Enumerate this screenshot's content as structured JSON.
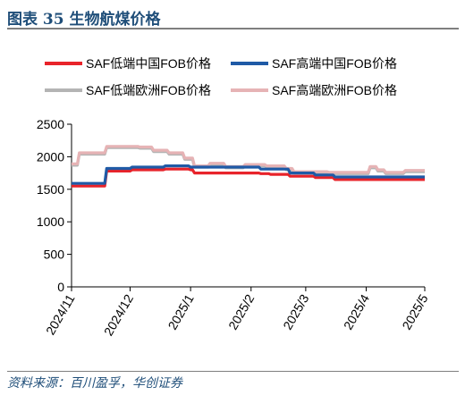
{
  "header": {
    "title": "图表 35   生物航煤价格"
  },
  "footer": {
    "source": "资料来源：百川盈孚，华创证券"
  },
  "chart_data": {
    "type": "line",
    "title": "",
    "xlabel": "",
    "ylabel": "",
    "ylim": [
      0,
      2500
    ],
    "yticks": [
      0,
      500,
      1000,
      1500,
      2000,
      2500
    ],
    "xticks": [
      "2024/11",
      "2024/12",
      "2025/1",
      "2025/2",
      "2025/3",
      "2025/4",
      "2025/5"
    ],
    "x_range": [
      "2024-11-01",
      "2025-05-01"
    ],
    "grid": false,
    "legend_position": "top",
    "series": [
      {
        "name": "SAF低端中国FOB价格",
        "color": "#e8232a",
        "x": [
          "2024-11-01",
          "2024-11-18",
          "2024-11-19",
          "2024-12-01",
          "2024-12-02",
          "2024-12-18",
          "2024-12-19",
          "2024-12-31",
          "2025-01-01",
          "2025-01-02",
          "2025-01-03",
          "2025-02-05",
          "2025-02-06",
          "2025-02-10",
          "2025-02-11",
          "2025-02-20",
          "2025-02-21",
          "2025-03-05",
          "2025-03-06",
          "2025-03-15",
          "2025-03-16",
          "2025-05-01"
        ],
        "values": [
          1550,
          1550,
          1780,
          1780,
          1800,
          1800,
          1810,
          1810,
          1800,
          1800,
          1750,
          1750,
          1740,
          1740,
          1730,
          1730,
          1700,
          1700,
          1680,
          1680,
          1650,
          1650
        ]
      },
      {
        "name": "SAF高端中国FOB价格",
        "color": "#1f5aa6",
        "x": [
          "2024-11-01",
          "2024-11-18",
          "2024-11-19",
          "2024-12-01",
          "2024-12-02",
          "2024-12-18",
          "2024-12-19",
          "2024-12-31",
          "2025-01-01",
          "2025-02-05",
          "2025-02-06",
          "2025-02-20",
          "2025-02-21",
          "2025-03-05",
          "2025-03-06",
          "2025-03-15",
          "2025-03-16",
          "2025-05-01"
        ],
        "values": [
          1590,
          1590,
          1820,
          1820,
          1840,
          1840,
          1860,
          1860,
          1840,
          1840,
          1810,
          1810,
          1750,
          1750,
          1720,
          1720,
          1690,
          1690
        ]
      },
      {
        "name": "SAF低端欧洲FOB价格",
        "color": "#b4b4b4",
        "x": [
          "2024-11-01",
          "2024-11-04",
          "2024-11-05",
          "2024-11-18",
          "2024-11-19",
          "2024-12-05",
          "2024-12-06",
          "2024-12-12",
          "2024-12-13",
          "2024-12-20",
          "2024-12-21",
          "2024-12-28",
          "2024-12-29",
          "2025-01-02",
          "2025-01-03",
          "2025-01-10",
          "2025-01-11",
          "2025-01-18",
          "2025-01-19",
          "2025-01-28",
          "2025-01-29",
          "2025-02-08",
          "2025-02-09",
          "2025-02-18",
          "2025-02-19",
          "2025-02-22",
          "2025-02-23",
          "2025-03-12",
          "2025-03-13",
          "2025-04-02",
          "2025-04-03",
          "2025-04-06",
          "2025-04-07",
          "2025-04-10",
          "2025-04-11",
          "2025-04-20",
          "2025-04-21",
          "2025-05-01"
        ],
        "values": [
          1870,
          1870,
          2040,
          2040,
          2140,
          2140,
          2130,
          2130,
          2080,
          2080,
          2040,
          2040,
          1960,
          1960,
          1840,
          1840,
          1880,
          1880,
          1830,
          1830,
          1860,
          1860,
          1840,
          1840,
          1800,
          1800,
          1750,
          1750,
          1740,
          1740,
          1830,
          1830,
          1780,
          1780,
          1740,
          1740,
          1770,
          1770
        ]
      },
      {
        "name": "SAF高端欧洲FOB价格",
        "color": "#e6b3b5",
        "x": [
          "2024-11-01",
          "2024-11-04",
          "2024-11-05",
          "2024-11-18",
          "2024-11-19",
          "2024-12-05",
          "2024-12-06",
          "2024-12-12",
          "2024-12-13",
          "2024-12-20",
          "2024-12-21",
          "2024-12-28",
          "2024-12-29",
          "2025-01-02",
          "2025-01-03",
          "2025-01-10",
          "2025-01-11",
          "2025-01-18",
          "2025-01-19",
          "2025-01-28",
          "2025-01-29",
          "2025-02-08",
          "2025-02-09",
          "2025-02-18",
          "2025-02-19",
          "2025-02-22",
          "2025-02-23",
          "2025-03-12",
          "2025-03-13",
          "2025-04-02",
          "2025-04-03",
          "2025-04-06",
          "2025-04-07",
          "2025-04-10",
          "2025-04-11",
          "2025-04-20",
          "2025-04-21",
          "2025-05-01"
        ],
        "values": [
          1890,
          1890,
          2060,
          2060,
          2160,
          2160,
          2150,
          2150,
          2100,
          2100,
          2060,
          2060,
          1980,
          1980,
          1860,
          1860,
          1900,
          1900,
          1850,
          1850,
          1880,
          1880,
          1860,
          1860,
          1820,
          1820,
          1770,
          1770,
          1760,
          1760,
          1850,
          1850,
          1800,
          1800,
          1760,
          1760,
          1790,
          1790
        ]
      }
    ]
  }
}
